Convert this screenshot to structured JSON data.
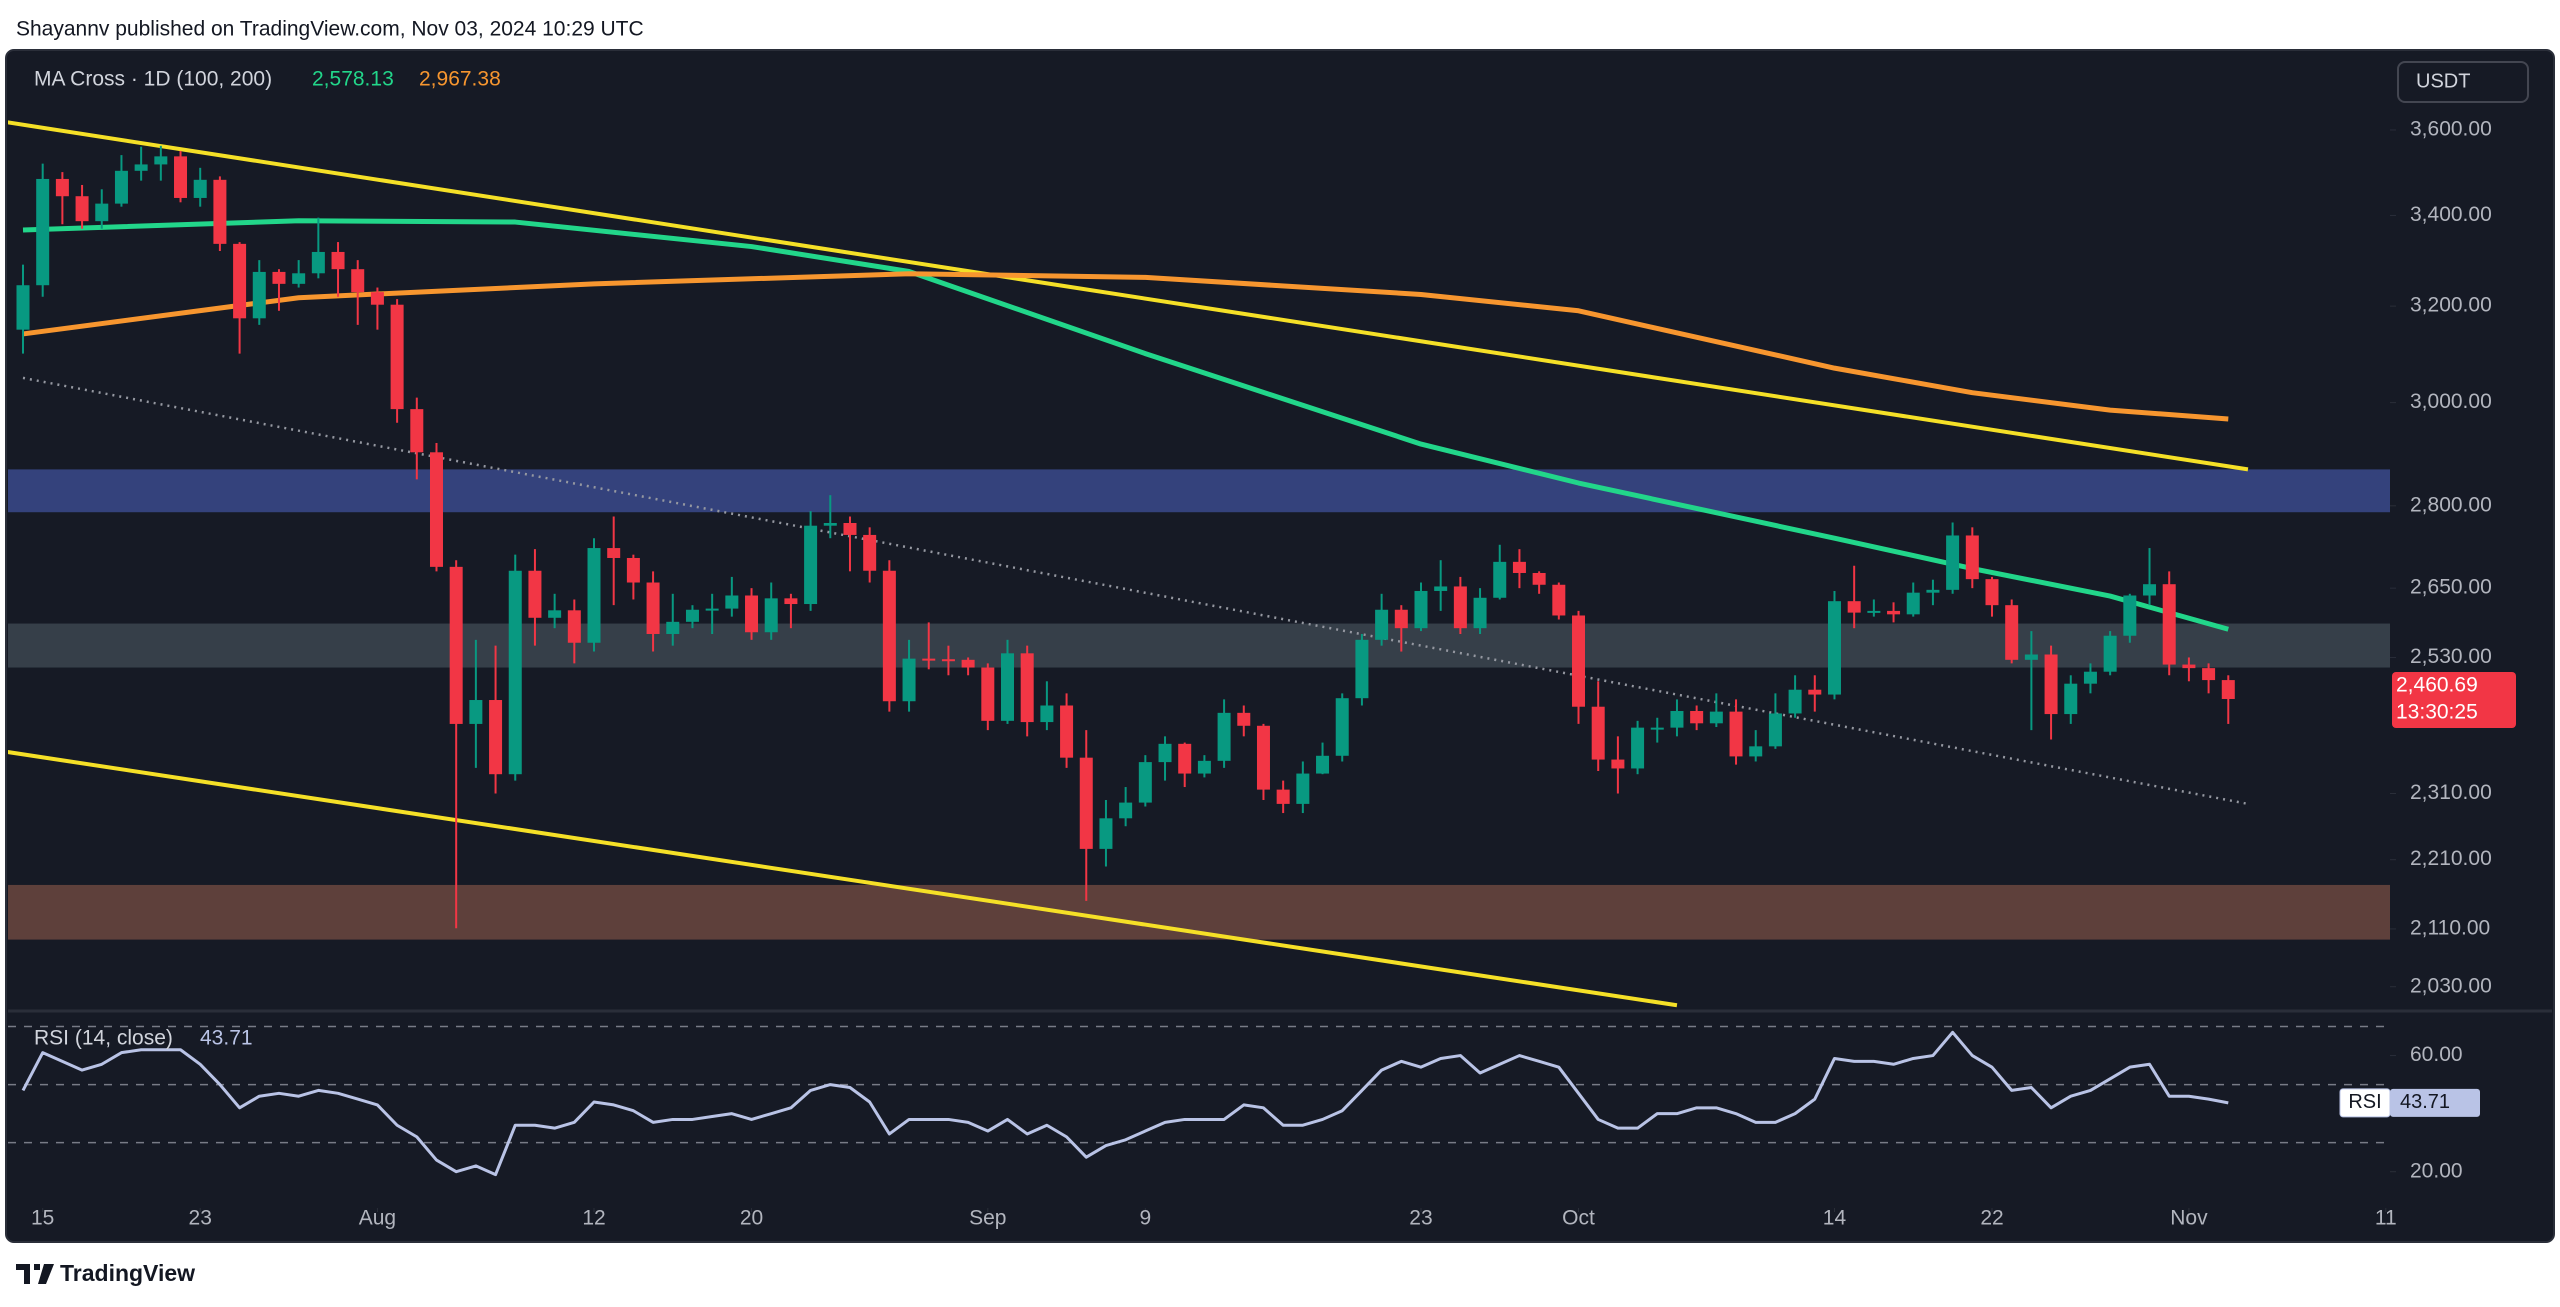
{
  "header": "Shayannv published on TradingView.com, Nov 03, 2024 10:29 UTC",
  "footer": "TradingView",
  "chart_data": [
    {
      "type": "candlestick",
      "legend_title": "MA Cross · 1D (100, 200)",
      "currency": "USDT",
      "log_scale": true,
      "grid": false,
      "up_color": "#089981",
      "down_color": "#f23645",
      "categories": [
        "07-14",
        "07-15",
        "07-16",
        "07-17",
        "07-18",
        "07-19",
        "07-20",
        "07-21",
        "07-22",
        "07-23",
        "07-24",
        "07-25",
        "07-26",
        "07-27",
        "07-28",
        "07-29",
        "07-30",
        "07-31",
        "08-01",
        "08-02",
        "08-03",
        "08-04",
        "08-05",
        "08-06",
        "08-07",
        "08-08",
        "08-09",
        "08-10",
        "08-11",
        "08-12",
        "08-13",
        "08-14",
        "08-15",
        "08-16",
        "08-17",
        "08-18",
        "08-19",
        "08-20",
        "08-21",
        "08-22",
        "08-23",
        "08-24",
        "08-25",
        "08-26",
        "08-27",
        "08-28",
        "08-29",
        "08-30",
        "08-31",
        "09-01",
        "09-02",
        "09-03",
        "09-04",
        "09-05",
        "09-06",
        "09-07",
        "09-08",
        "09-09",
        "09-10",
        "09-11",
        "09-12",
        "09-13",
        "09-14",
        "09-15",
        "09-16",
        "09-17",
        "09-18",
        "09-19",
        "09-20",
        "09-21",
        "09-22",
        "09-23",
        "09-24",
        "09-25",
        "09-26",
        "09-27",
        "09-28",
        "09-29",
        "09-30",
        "10-01",
        "10-02",
        "10-03",
        "10-04",
        "10-05",
        "10-06",
        "10-07",
        "10-08",
        "10-09",
        "10-10",
        "10-11",
        "10-12",
        "10-13",
        "10-14",
        "10-15",
        "10-16",
        "10-17",
        "10-18",
        "10-19",
        "10-20",
        "10-21",
        "10-22",
        "10-23",
        "10-24",
        "10-25",
        "10-26",
        "10-27",
        "10-28",
        "10-29",
        "10-30",
        "10-31",
        "11-01",
        "11-02",
        "11-03"
      ],
      "open": [
        3150,
        3245,
        3484,
        3444,
        3387,
        3427,
        3503,
        3518,
        3537,
        3440,
        3482,
        3336,
        3174,
        3274,
        3248,
        3271,
        3318,
        3280,
        3230,
        3203,
        2987,
        2902,
        2688,
        2420,
        2459,
        2340,
        2681,
        2598,
        2611,
        2555,
        2722,
        2704,
        2660,
        2570,
        2591,
        2612,
        2614,
        2637,
        2573,
        2632,
        2622,
        2763,
        2768,
        2746,
        2681,
        2457,
        2528,
        2527,
        2526,
        2513,
        2425,
        2537,
        2423,
        2450,
        2366,
        2226,
        2272,
        2296,
        2359,
        2388,
        2341,
        2361,
        2438,
        2417,
        2316,
        2294,
        2341,
        2369,
        2462,
        2560,
        2612,
        2580,
        2645,
        2653,
        2580,
        2633,
        2697,
        2677,
        2656,
        2602,
        2448,
        2363,
        2349,
        2414,
        2414,
        2441,
        2421,
        2440,
        2368,
        2384,
        2437,
        2476,
        2468,
        2627,
        2607,
        2610,
        2604,
        2642,
        2647,
        2745,
        2666,
        2620,
        2526,
        2535,
        2436,
        2486,
        2506,
        2567,
        2637,
        2657,
        2518,
        2512,
        2492
      ],
      "high": [
        3290,
        3520,
        3500,
        3470,
        3460,
        3540,
        3560,
        3562,
        3550,
        3510,
        3490,
        3340,
        3300,
        3280,
        3300,
        3395,
        3340,
        3300,
        3240,
        3215,
        3010,
        2920,
        2700,
        2560,
        2550,
        2710,
        2720,
        2640,
        2630,
        2740,
        2780,
        2710,
        2680,
        2640,
        2620,
        2640,
        2670,
        2650,
        2660,
        2640,
        2790,
        2820,
        2780,
        2760,
        2700,
        2560,
        2590,
        2550,
        2530,
        2520,
        2560,
        2550,
        2490,
        2470,
        2410,
        2300,
        2320,
        2370,
        2400,
        2390,
        2370,
        2460,
        2450,
        2420,
        2330,
        2360,
        2390,
        2470,
        2570,
        2640,
        2620,
        2660,
        2700,
        2670,
        2650,
        2728,
        2720,
        2680,
        2660,
        2610,
        2490,
        2400,
        2425,
        2430,
        2460,
        2450,
        2470,
        2460,
        2410,
        2470,
        2500,
        2500,
        2645,
        2690,
        2630,
        2625,
        2660,
        2665,
        2769,
        2760,
        2670,
        2630,
        2575,
        2550,
        2500,
        2520,
        2575,
        2640,
        2722,
        2680,
        2530,
        2520,
        2500
      ],
      "low": [
        3100,
        3220,
        3380,
        3370,
        3370,
        3420,
        3480,
        3480,
        3430,
        3420,
        3320,
        3100,
        3160,
        3190,
        3240,
        3260,
        3220,
        3160,
        3150,
        2960,
        2850,
        2680,
        2111,
        2350,
        2310,
        2330,
        2550,
        2580,
        2520,
        2540,
        2620,
        2630,
        2540,
        2550,
        2580,
        2570,
        2600,
        2560,
        2560,
        2580,
        2610,
        2740,
        2680,
        2660,
        2440,
        2440,
        2510,
        2500,
        2500,
        2410,
        2420,
        2400,
        2410,
        2350,
        2150,
        2200,
        2260,
        2290,
        2330,
        2320,
        2335,
        2350,
        2400,
        2300,
        2280,
        2280,
        2340,
        2360,
        2450,
        2550,
        2540,
        2575,
        2610,
        2570,
        2570,
        2630,
        2650,
        2640,
        2595,
        2420,
        2345,
        2310,
        2340,
        2390,
        2400,
        2410,
        2415,
        2355,
        2360,
        2380,
        2430,
        2440,
        2460,
        2580,
        2600,
        2590,
        2600,
        2620,
        2640,
        2650,
        2600,
        2520,
        2410,
        2395,
        2420,
        2470,
        2500,
        2555,
        2620,
        2500,
        2490,
        2470,
        2420
      ],
      "close": [
        3245,
        3484,
        3444,
        3387,
        3427,
        3503,
        3518,
        3537,
        3440,
        3482,
        3336,
        3174,
        3274,
        3248,
        3271,
        3318,
        3280,
        3230,
        3203,
        2987,
        2902,
        2688,
        2420,
        2459,
        2340,
        2681,
        2598,
        2611,
        2555,
        2722,
        2704,
        2660,
        2570,
        2591,
        2612,
        2614,
        2637,
        2573,
        2632,
        2622,
        2763,
        2768,
        2746,
        2681,
        2457,
        2528,
        2527,
        2526,
        2513,
        2425,
        2537,
        2423,
        2450,
        2366,
        2226,
        2272,
        2296,
        2359,
        2388,
        2341,
        2361,
        2438,
        2417,
        2316,
        2294,
        2341,
        2369,
        2462,
        2560,
        2612,
        2580,
        2645,
        2653,
        2580,
        2633,
        2697,
        2677,
        2656,
        2602,
        2448,
        2363,
        2349,
        2414,
        2414,
        2441,
        2421,
        2440,
        2368,
        2384,
        2437,
        2476,
        2468,
        2627,
        2607,
        2610,
        2604,
        2642,
        2647,
        2745,
        2666,
        2620,
        2526,
        2535,
        2436,
        2486,
        2506,
        2567,
        2637,
        2657,
        2518,
        2512,
        2492,
        2460.69
      ],
      "series": [
        {
          "color": "#22d68a",
          "x": [
            "07-14",
            "07-28",
            "08-08",
            "08-20",
            "08-28",
            "09-09",
            "09-23",
            "10-01",
            "10-14",
            "10-21",
            "10-28",
            "11-03"
          ],
          "values": [
            3367,
            3388,
            3385,
            3330,
            3275,
            3100,
            2918,
            2843,
            2740,
            2685,
            2636,
            2578.13
          ],
          "value_labels": [
            null,
            null,
            null,
            null,
            null,
            null,
            null,
            null,
            null,
            null,
            null,
            "2,578.13"
          ]
        },
        {
          "color": "#f7962f",
          "x": [
            "07-14",
            "07-28",
            "08-12",
            "08-28",
            "09-09",
            "09-23",
            "10-01",
            "10-14",
            "10-21",
            "10-28",
            "11-03"
          ],
          "values": [
            3141,
            3218,
            3248,
            3270,
            3262,
            3225,
            3190,
            3070,
            3020,
            2985,
            2967.38
          ],
          "value_labels": [
            null,
            null,
            null,
            null,
            null,
            null,
            null,
            null,
            null,
            null,
            "2,967.38"
          ]
        }
      ],
      "lines": [
        {
          "color": "#f5e027",
          "style": "solid",
          "x": [
            "07-13",
            "11-04"
          ],
          "values": [
            3620,
            2869
          ]
        },
        {
          "color": "#f5e027",
          "style": "solid",
          "x": [
            "07-13",
            "10-06"
          ],
          "values": [
            2376,
            2005
          ]
        },
        {
          "color": "#9598a1",
          "style": "dotted",
          "x": [
            "07-14",
            "11-04"
          ],
          "values": [
            3050,
            2294
          ]
        }
      ],
      "zones": [
        {
          "range": [
            2788,
            2869
          ],
          "color": "#3a4a8c"
        },
        {
          "range": [
            2513,
            2588
          ],
          "color": "#3c4650"
        },
        {
          "range": [
            2095,
            2173
          ],
          "color": "#6b4840"
        }
      ],
      "last_price": {
        "value": 2460.69,
        "label": "2,460.69",
        "countdown": "13:30:25"
      },
      "ylim": [
        2000,
        3780
      ],
      "yticks": [
        {
          "value": 2030,
          "label": "2,030.00"
        },
        {
          "value": 2110,
          "label": "2,110.00"
        },
        {
          "value": 2210,
          "label": "2,210.00"
        },
        {
          "value": 2310,
          "label": "2,310.00"
        },
        {
          "value": 2530,
          "label": "2,530.00"
        },
        {
          "value": 2650,
          "label": "2,650.00"
        },
        {
          "value": 2800,
          "label": "2,800.00"
        },
        {
          "value": 3000,
          "label": "3,000.00"
        },
        {
          "value": 3200,
          "label": "3,200.00"
        },
        {
          "value": 3400,
          "label": "3,400.00"
        },
        {
          "value": 3600,
          "label": "3,600.00"
        }
      ],
      "xticks": [
        {
          "value": "07-15",
          "label": "15"
        },
        {
          "value": "07-23",
          "label": "23"
        },
        {
          "value": "08-01",
          "label": "Aug"
        },
        {
          "value": "08-12",
          "label": "12"
        },
        {
          "value": "08-20",
          "label": "20"
        },
        {
          "value": "09-01",
          "label": "Sep"
        },
        {
          "value": "09-09",
          "label": "9"
        },
        {
          "value": "09-23",
          "label": "23"
        },
        {
          "value": "10-01",
          "label": "Oct"
        },
        {
          "value": "10-14",
          "label": "14"
        },
        {
          "value": "10-22",
          "label": "22"
        },
        {
          "value": "11-01",
          "label": "Nov"
        },
        {
          "value": "11-11",
          "label": "11"
        }
      ]
    },
    {
      "type": "line",
      "title": "RSI (14, close)",
      "tag": "RSI",
      "color": "#b9c3e6",
      "values": [
        48,
        61,
        58,
        55,
        57,
        61,
        62,
        62,
        62,
        57,
        50,
        42,
        46,
        47,
        46,
        48,
        47,
        45,
        43,
        36,
        32,
        24,
        20,
        22,
        19,
        36,
        36,
        35,
        37,
        44,
        43,
        41,
        37,
        38,
        38,
        39,
        40,
        38,
        40,
        42,
        48,
        50,
        49,
        44,
        33,
        38,
        38,
        38,
        37,
        34,
        38,
        33,
        36,
        32,
        25,
        29,
        31,
        34,
        37,
        38,
        38,
        38,
        43,
        42,
        36,
        36,
        38,
        41,
        48,
        55,
        58,
        56,
        59,
        60,
        54,
        57,
        60,
        58,
        56,
        47,
        38,
        35,
        35,
        40,
        40,
        42,
        42,
        40,
        37,
        37,
        40,
        45,
        59,
        58,
        58,
        57,
        59,
        60,
        68,
        60,
        56,
        48,
        49,
        42,
        46,
        48,
        52,
        56,
        57,
        46,
        46,
        45,
        43.71
      ],
      "levels": [
        70,
        50,
        30
      ],
      "ylim": [
        7.5,
        75
      ],
      "yticks": [
        {
          "value": 20,
          "label": "20.00"
        },
        {
          "value": 60,
          "label": "60.00"
        }
      ]
    }
  ]
}
